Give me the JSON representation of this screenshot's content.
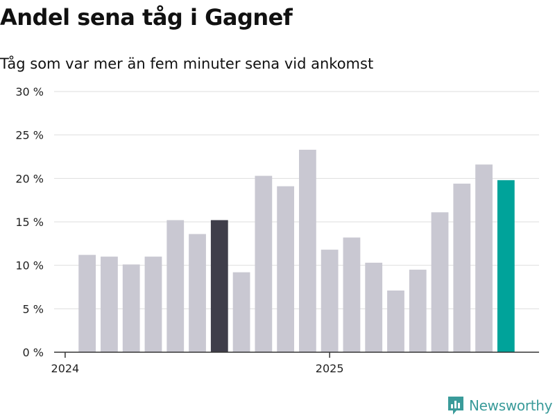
{
  "chart_data": {
    "type": "bar",
    "title": "Andel sena tåg i Gagnef",
    "subtitle": "Tåg som var mer än fem minuter sena vid ankomst",
    "xlabel": "",
    "ylabel": "",
    "ylim": [
      0,
      30
    ],
    "yticks": [
      "0 %",
      "5 %",
      "10 %",
      "15 %",
      "20 %",
      "25 %",
      "30 %"
    ],
    "xticks": [
      {
        "label": "2024",
        "index": 0
      },
      {
        "label": "2025",
        "index": 12
      }
    ],
    "categories": [
      "2024-01",
      "2024-02",
      "2024-03",
      "2024-04",
      "2024-05",
      "2024-06",
      "2024-07",
      "2024-08",
      "2024-09",
      "2024-10",
      "2024-11",
      "2024-12",
      "2025-01",
      "2025-02",
      "2025-03",
      "2025-04",
      "2025-05",
      "2025-06",
      "2025-07",
      "2025-08",
      "2025-09",
      "2025-10"
    ],
    "values": [
      null,
      11.2,
      11.0,
      10.1,
      11.0,
      15.2,
      13.6,
      15.2,
      9.2,
      20.3,
      19.1,
      23.3,
      11.8,
      13.2,
      10.3,
      7.1,
      9.5,
      16.1,
      19.4,
      21.6,
      19.8,
      null
    ],
    "highlight": {
      "2024-08": "#3f3e4a",
      "2025-09": "#00a39a"
    },
    "bar_color": "#c9c8d2",
    "grid": true
  },
  "brand": {
    "name": "Newsworthy",
    "icon": "newsworthy-logo-icon",
    "color": "#3a9b9a"
  }
}
